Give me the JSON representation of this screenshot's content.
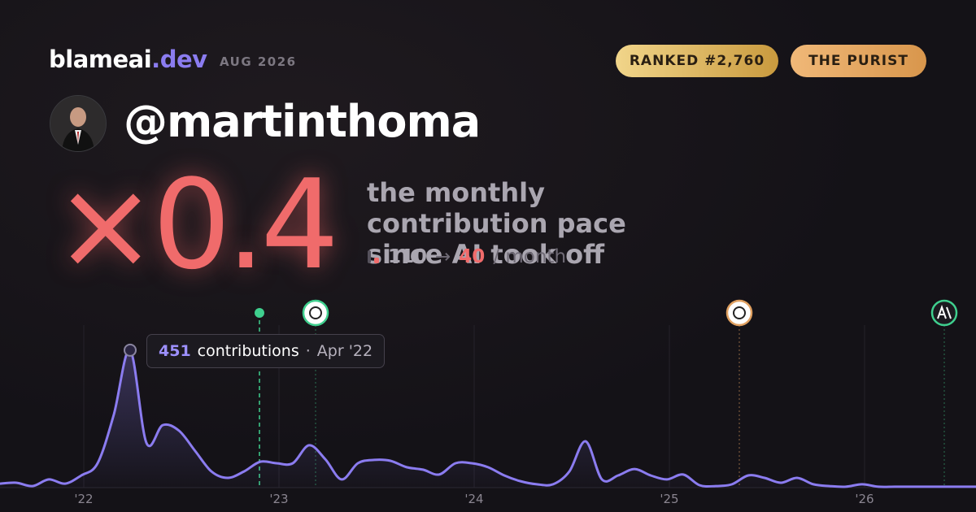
{
  "header": {
    "brand": "blameai",
    "brand_tld": ".dev",
    "period": "AUG 2026",
    "badges": [
      "RANKED #2,760",
      "THE PURIST"
    ]
  },
  "profile": {
    "handle": "@martinthoma"
  },
  "headline": {
    "multiplier": "×0.4",
    "description": "the monthly contribution pace since AI took off",
    "before": "110",
    "arrow": "→",
    "after": "40",
    "unit": "/ month"
  },
  "chart_data": {
    "type": "line",
    "categories": [
      null,
      null,
      null,
      null,
      null,
      "'22",
      null,
      null,
      null,
      null,
      null,
      null,
      null,
      null,
      null,
      null,
      null,
      "'23",
      null,
      null,
      null,
      null,
      null,
      null,
      null,
      null,
      null,
      null,
      null,
      "'24",
      null,
      null,
      null,
      null,
      null,
      null,
      null,
      null,
      null,
      null,
      null,
      "'25",
      null,
      null,
      null,
      null,
      null,
      null,
      null,
      null,
      null,
      null,
      null,
      "'26",
      null,
      null,
      null,
      null,
      null,
      null,
      null
    ],
    "values": [
      13,
      16,
      5,
      27,
      13,
      40,
      80,
      240,
      451,
      147,
      205,
      187,
      120,
      53,
      32,
      53,
      85,
      80,
      80,
      139,
      93,
      27,
      80,
      91,
      88,
      67,
      59,
      43,
      80,
      80,
      67,
      40,
      21,
      11,
      11,
      53,
      152,
      27,
      40,
      61,
      40,
      27,
      43,
      8,
      5,
      11,
      40,
      32,
      16,
      32,
      11,
      5,
      3,
      11,
      3,
      3,
      3,
      3,
      3,
      3,
      3
    ],
    "color": "#8b7cf0",
    "ylim": [
      0,
      520
    ],
    "tooltip": {
      "unit": "contributions",
      "separator": "·",
      "date": "Apr '22"
    }
  }
}
